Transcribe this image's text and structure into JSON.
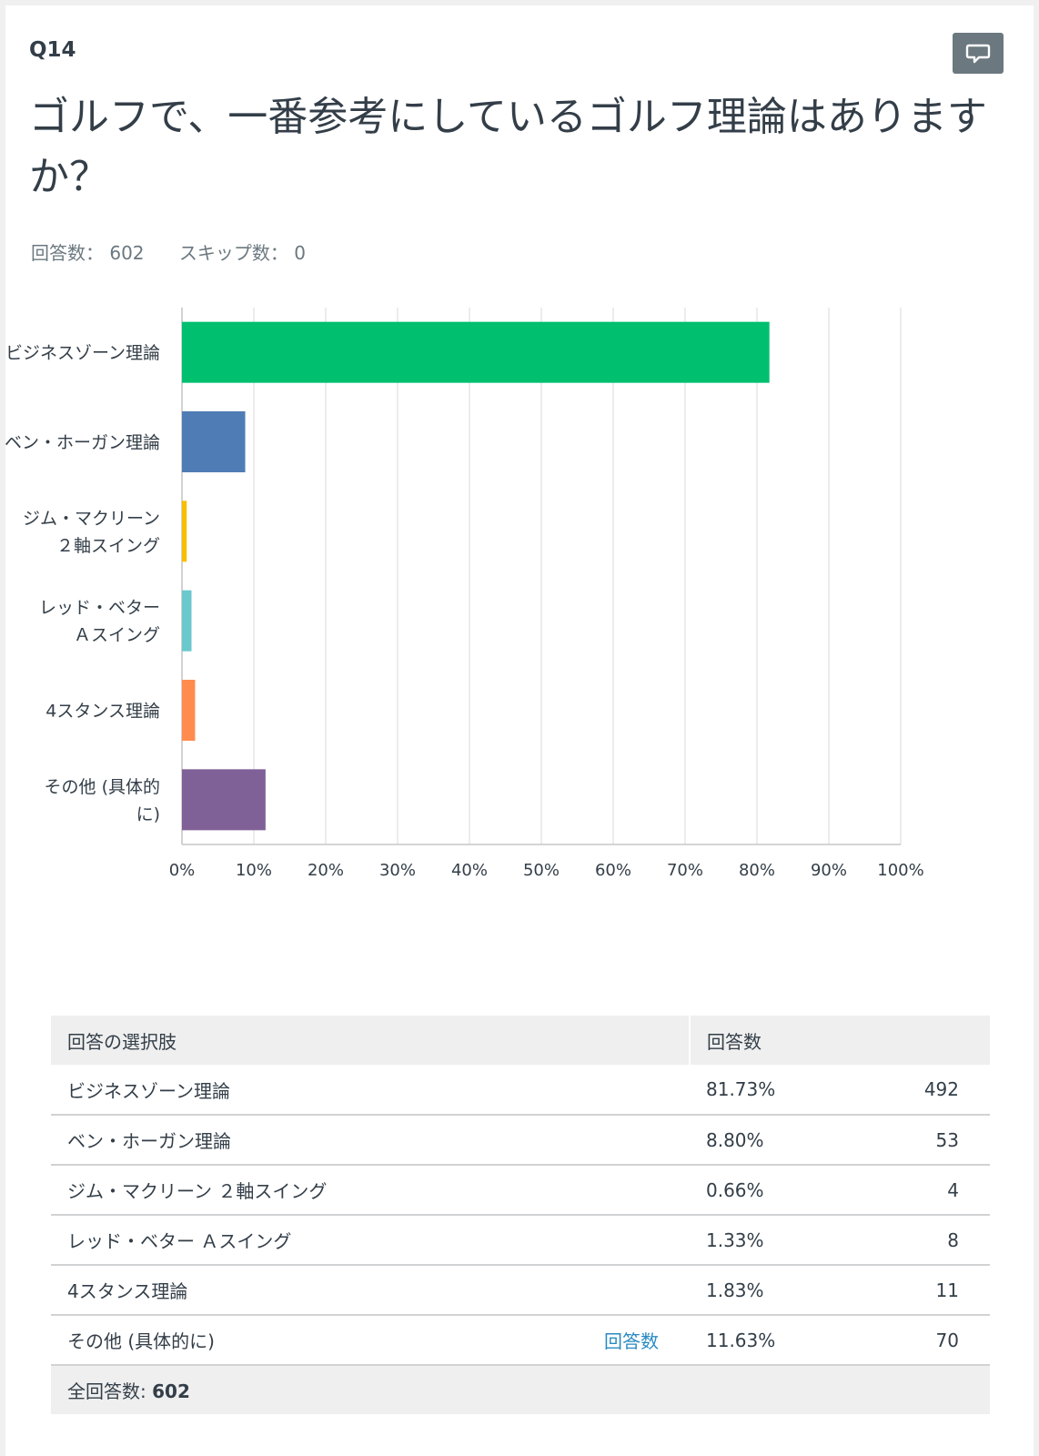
{
  "question": {
    "number": "Q14",
    "title": "ゴルフで、一番参考にしているゴルフ理論はありますか？",
    "answered_label": "回答数：",
    "answered": "602",
    "skipped_label": "スキップ数：",
    "skipped": "0"
  },
  "colors": {
    "accent": "#00bf6f",
    "link": "#2a8ac2"
  },
  "chart_data": {
    "type": "bar",
    "orientation": "horizontal",
    "categories": [
      [
        "ビジネスゾーン理論"
      ],
      [
        "ベン・ホーガン理論"
      ],
      [
        "ジム・マクリーン",
        "２軸スイング"
      ],
      [
        "レッド・ベター",
        "Ａスイング"
      ],
      [
        "4スタンス理論"
      ],
      [
        "その他 (具体的",
        "に)"
      ]
    ],
    "values": [
      81.73,
      8.8,
      0.66,
      1.33,
      1.83,
      11.63
    ],
    "colors": [
      "#00bf6f",
      "#507cb6",
      "#f9be00",
      "#6bc8cd",
      "#ff8b4f",
      "#7f6197"
    ],
    "xlim": [
      0,
      100
    ],
    "xticks": [
      "0%",
      "10%",
      "20%",
      "30%",
      "40%",
      "50%",
      "60%",
      "70%",
      "80%",
      "90%",
      "100%"
    ],
    "grid": true
  },
  "table": {
    "headers": [
      "回答の選択肢",
      "回答数"
    ],
    "rows": [
      {
        "label": "ビジネスゾーン理論",
        "link": "",
        "pct": "81.73%",
        "count": "492"
      },
      {
        "label": "ベン・ホーガン理論",
        "link": "",
        "pct": "8.80%",
        "count": "53"
      },
      {
        "label": "ジム・マクリーン ２軸スイング",
        "link": "",
        "pct": "0.66%",
        "count": "4"
      },
      {
        "label": "レッド・ベター Ａスイング",
        "link": "",
        "pct": "1.33%",
        "count": "8"
      },
      {
        "label": "4スタンス理論",
        "link": "",
        "pct": "1.83%",
        "count": "11"
      },
      {
        "label": "その他 (具体的に)",
        "link": "回答数",
        "pct": "11.63%",
        "count": "70"
      }
    ],
    "total_label": "全回答数:",
    "total_value": "602"
  }
}
